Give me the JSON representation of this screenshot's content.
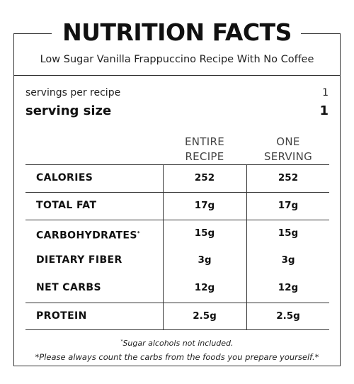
{
  "title": "NUTRITION FACTS",
  "subtitle": "Low Sugar Vanilla Frappuccino Recipe With No Coffee",
  "servings_per_recipe": {
    "label": "servings per recipe",
    "value": "1"
  },
  "serving_size": {
    "label": "serving size",
    "value": "1"
  },
  "columns": {
    "entire_line1": "ENTIRE",
    "entire_line2": "RECIPE",
    "one_line1": "ONE",
    "one_line2": "SERVING"
  },
  "rows": [
    {
      "label": "CALORIES",
      "entire": "252",
      "one": "252"
    },
    {
      "label": "TOTAL FAT",
      "entire": "17g",
      "one": "17g"
    },
    {
      "label": "CARBOHYDRATES",
      "marker": "*",
      "entire": "15g",
      "one": "15g"
    },
    {
      "label": "DIETARY FIBER",
      "entire": "3g",
      "one": "3g"
    },
    {
      "label": "NET CARBS",
      "entire": "12g",
      "one": "12g"
    },
    {
      "label": "PROTEIN",
      "entire": "2.5g",
      "one": "2.5g"
    }
  ],
  "footnotes": {
    "marker": "*",
    "sugar_alcohols": "Sugar alcohols not included.",
    "disclaimer": "*Please always count the carbs from the foods you prepare yourself.*"
  },
  "colors": {
    "text": "#1a1a1a",
    "rule": "#333333",
    "background": "#ffffff"
  }
}
